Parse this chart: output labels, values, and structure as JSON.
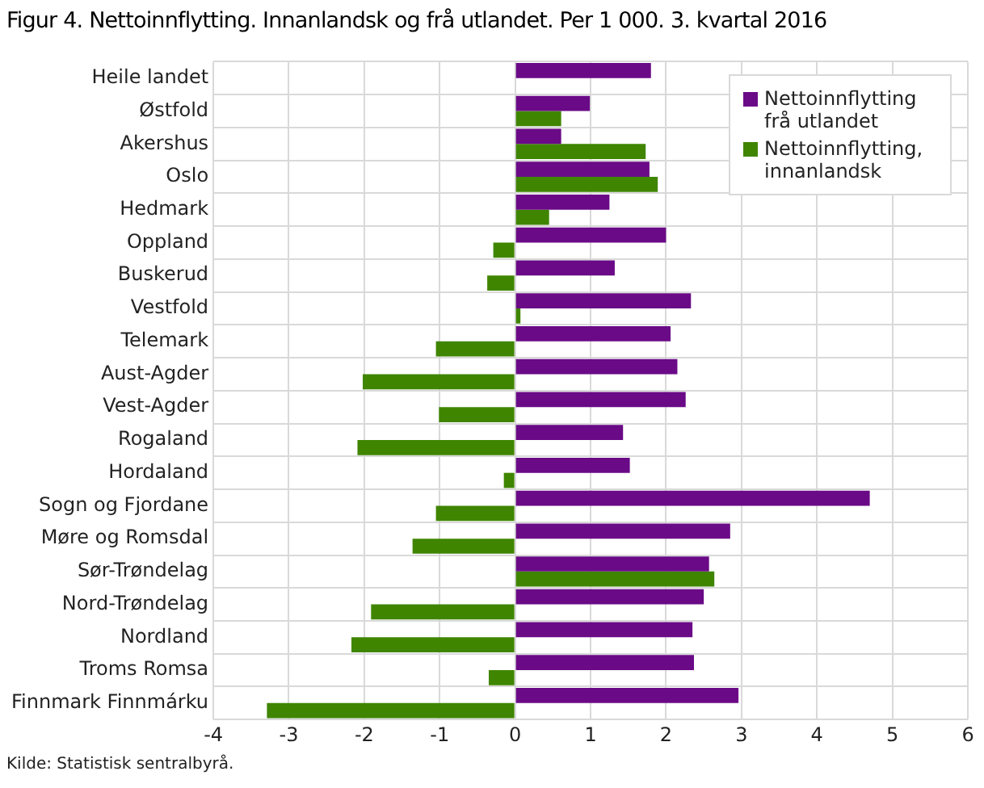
{
  "chart_data": {
    "type": "bar",
    "orientation": "horizontal",
    "title": "Figur 4. Nettoinnflytting. Innanlandsk og frå utlandet. Per 1 000. 3. kvartal 2016",
    "categories": [
      "Heile landet",
      "Østfold",
      "Akershus",
      "Oslo",
      "Hedmark",
      "Oppland",
      "Buskerud",
      "Vestfold",
      "Telemark",
      "Aust-Agder",
      "Vest-Agder",
      "Rogaland",
      "Hordaland",
      "Sogn og Fjordane",
      "Møre og Romsdal",
      "Sør-Trøndelag",
      "Nord-Trøndelag",
      "Nordland",
      "Troms Romsa",
      "Finnmark Finnmárku"
    ],
    "series": [
      {
        "name": "Nettoinnflytting frå utlandet",
        "color": "#6a0a87",
        "values": [
          1.8,
          0.99,
          0.61,
          1.78,
          1.25,
          2.0,
          1.32,
          2.33,
          2.06,
          2.15,
          2.26,
          1.43,
          1.52,
          4.7,
          2.85,
          2.57,
          2.5,
          2.35,
          2.37,
          2.96
        ]
      },
      {
        "name": "Nettoinnflytting, innanlandsk",
        "color": "#3f8500",
        "values": [
          null,
          0.61,
          1.73,
          1.89,
          0.45,
          -0.29,
          -0.37,
          0.07,
          -1.05,
          -2.02,
          -1.01,
          -2.09,
          -0.15,
          -1.05,
          -1.36,
          2.64,
          -1.91,
          -2.17,
          -0.35,
          -3.29
        ]
      }
    ],
    "xlim": [
      -4,
      6
    ],
    "xticks": [
      -4,
      -3,
      -2,
      -1,
      0,
      1,
      2,
      3,
      4,
      5,
      6
    ],
    "grid": true,
    "legend": "top right",
    "annotations": [
      "Kilde: Statistisk sentralbyrå."
    ]
  }
}
